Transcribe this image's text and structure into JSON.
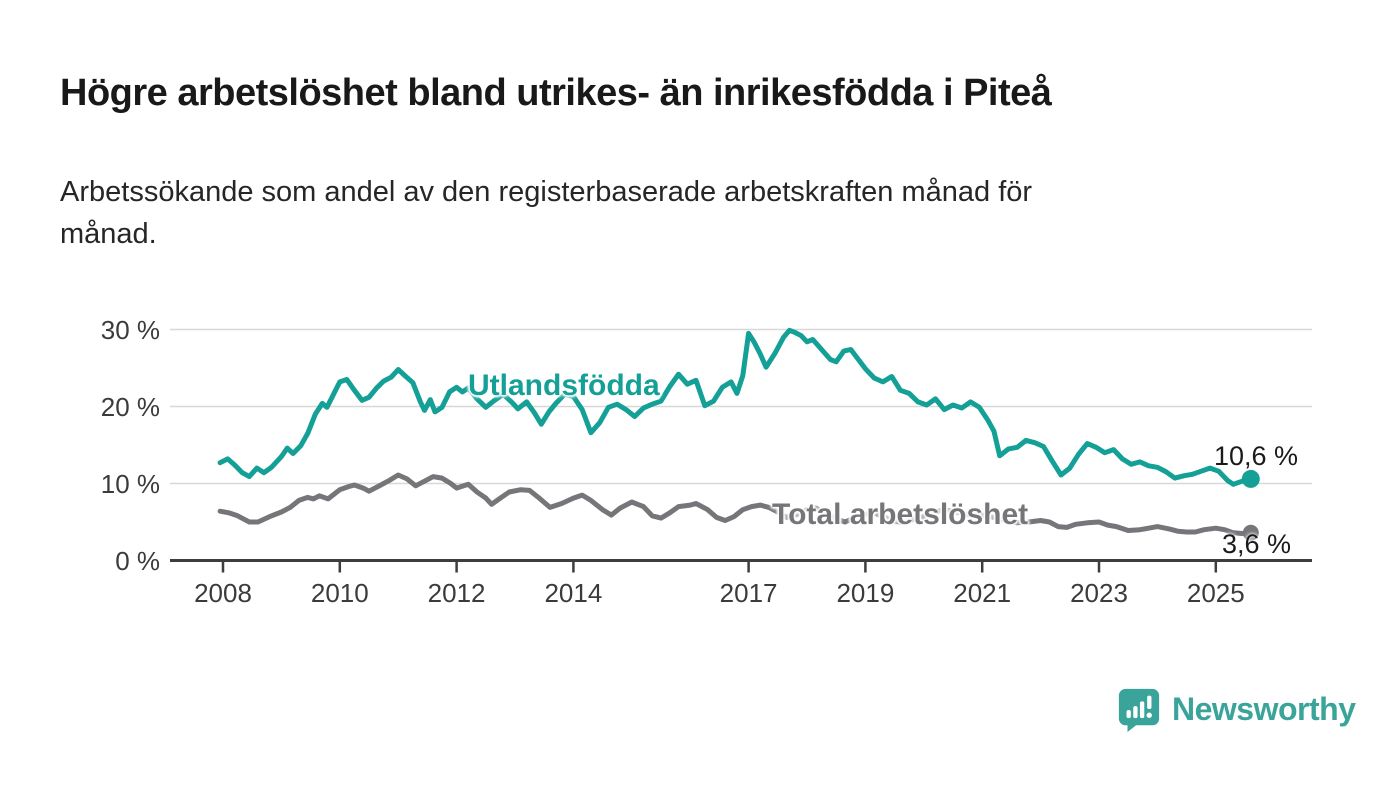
{
  "header": {
    "title": "Högre arbetslöshet bland utrikes- än inrikesfödda i Piteå",
    "subtitle_lines": [
      "Arbetssökande som andel av den registerbaserade arbetskraften månad för",
      "månad."
    ]
  },
  "branding": {
    "name": "Newsworthy",
    "logo_color": "#3aa49b"
  },
  "colors": {
    "accent_teal": "#14a096",
    "neutral_gray": "#76767a",
    "axis": "#3d3d3d",
    "grid": "#d8d8d8",
    "text": "#191919"
  },
  "chart_data": {
    "type": "line",
    "title": "Högre arbetslöshet bland utrikes- än inrikesfödda i Piteå",
    "xlabel": "",
    "ylabel": "",
    "grid": "horizontal",
    "legend_position": "inline-labels",
    "xlim": [
      2007.8,
      2026.2
    ],
    "ylim": [
      0,
      31
    ],
    "y_ticks": [
      {
        "value": 0,
        "label": "0 %"
      },
      {
        "value": 10,
        "label": "10 %"
      },
      {
        "value": 20,
        "label": "20 %"
      },
      {
        "value": 30,
        "label": "30 %"
      }
    ],
    "x_ticks": [
      {
        "year": 2008,
        "label": "2008"
      },
      {
        "year": 2010,
        "label": "2010"
      },
      {
        "year": 2012,
        "label": "2012"
      },
      {
        "year": 2014,
        "label": "2014"
      },
      {
        "year": 2017,
        "label": "2017"
      },
      {
        "year": 2019,
        "label": "2019"
      },
      {
        "year": 2021,
        "label": "2021"
      },
      {
        "year": 2023,
        "label": "2023"
      },
      {
        "year": 2025,
        "label": "2025"
      }
    ],
    "series": [
      {
        "name": "Total arbetslöshet",
        "color": "#76767a",
        "end_label": "3,6 %",
        "end_value": 3.6,
        "points": [
          [
            2007.95,
            6.4
          ],
          [
            2008.1,
            6.2
          ],
          [
            2008.25,
            5.8
          ],
          [
            2008.45,
            5.0
          ],
          [
            2008.6,
            5.0
          ],
          [
            2008.8,
            5.7
          ],
          [
            2009.0,
            6.3
          ],
          [
            2009.15,
            6.9
          ],
          [
            2009.3,
            7.8
          ],
          [
            2009.45,
            8.2
          ],
          [
            2009.55,
            8.0
          ],
          [
            2009.65,
            8.4
          ],
          [
            2009.8,
            8.0
          ],
          [
            2010.0,
            9.2
          ],
          [
            2010.15,
            9.6
          ],
          [
            2010.25,
            9.8
          ],
          [
            2010.4,
            9.4
          ],
          [
            2010.5,
            9.0
          ],
          [
            2010.65,
            9.6
          ],
          [
            2010.85,
            10.4
          ],
          [
            2011.0,
            11.1
          ],
          [
            2011.15,
            10.6
          ],
          [
            2011.3,
            9.7
          ],
          [
            2011.45,
            10.3
          ],
          [
            2011.6,
            10.9
          ],
          [
            2011.75,
            10.7
          ],
          [
            2011.9,
            10.0
          ],
          [
            2012.0,
            9.4
          ],
          [
            2012.2,
            9.9
          ],
          [
            2012.35,
            8.9
          ],
          [
            2012.5,
            8.1
          ],
          [
            2012.6,
            7.3
          ],
          [
            2012.75,
            8.1
          ],
          [
            2012.9,
            8.9
          ],
          [
            2013.1,
            9.2
          ],
          [
            2013.25,
            9.1
          ],
          [
            2013.4,
            8.2
          ],
          [
            2013.6,
            6.9
          ],
          [
            2013.8,
            7.4
          ],
          [
            2014.0,
            8.1
          ],
          [
            2014.15,
            8.5
          ],
          [
            2014.3,
            7.8
          ],
          [
            2014.5,
            6.6
          ],
          [
            2014.65,
            5.9
          ],
          [
            2014.8,
            6.8
          ],
          [
            2015.0,
            7.6
          ],
          [
            2015.2,
            7.0
          ],
          [
            2015.35,
            5.8
          ],
          [
            2015.5,
            5.5
          ],
          [
            2015.65,
            6.2
          ],
          [
            2015.8,
            7.0
          ],
          [
            2016.0,
            7.2
          ],
          [
            2016.1,
            7.4
          ],
          [
            2016.3,
            6.6
          ],
          [
            2016.45,
            5.6
          ],
          [
            2016.6,
            5.2
          ],
          [
            2016.75,
            5.7
          ],
          [
            2016.9,
            6.6
          ],
          [
            2017.05,
            7.0
          ],
          [
            2017.2,
            7.2
          ],
          [
            2017.35,
            6.9
          ],
          [
            2017.5,
            6.3
          ],
          [
            2017.65,
            5.6
          ],
          [
            2017.8,
            5.9
          ],
          [
            2018.0,
            6.6
          ],
          [
            2018.15,
            6.8
          ],
          [
            2018.3,
            6.2
          ],
          [
            2018.5,
            5.4
          ],
          [
            2018.65,
            5.0
          ],
          [
            2018.8,
            5.5
          ],
          [
            2019.0,
            6.0
          ],
          [
            2019.15,
            6.2
          ],
          [
            2019.3,
            5.7
          ],
          [
            2019.5,
            5.1
          ],
          [
            2019.65,
            4.9
          ],
          [
            2019.8,
            5.3
          ],
          [
            2020.0,
            5.7
          ],
          [
            2020.2,
            6.3
          ],
          [
            2020.35,
            6.6
          ],
          [
            2020.5,
            6.4
          ],
          [
            2020.7,
            6.0
          ],
          [
            2020.9,
            5.8
          ],
          [
            2021.05,
            5.9
          ],
          [
            2021.2,
            5.6
          ],
          [
            2021.4,
            5.2
          ],
          [
            2021.6,
            4.9
          ],
          [
            2021.8,
            5.0
          ],
          [
            2022.0,
            5.2
          ],
          [
            2022.15,
            5.0
          ],
          [
            2022.3,
            4.4
          ],
          [
            2022.45,
            4.3
          ],
          [
            2022.6,
            4.7
          ],
          [
            2022.8,
            4.9
          ],
          [
            2023.0,
            5.0
          ],
          [
            2023.15,
            4.6
          ],
          [
            2023.3,
            4.4
          ],
          [
            2023.5,
            3.9
          ],
          [
            2023.7,
            4.0
          ],
          [
            2023.85,
            4.2
          ],
          [
            2024.0,
            4.4
          ],
          [
            2024.2,
            4.1
          ],
          [
            2024.35,
            3.8
          ],
          [
            2024.5,
            3.7
          ],
          [
            2024.65,
            3.7
          ],
          [
            2024.8,
            4.0
          ],
          [
            2025.0,
            4.2
          ],
          [
            2025.15,
            4.0
          ],
          [
            2025.3,
            3.6
          ],
          [
            2025.45,
            3.5
          ],
          [
            2025.6,
            3.6
          ]
        ]
      },
      {
        "name": "Utlandsfödda",
        "color": "#14a096",
        "end_label": "10,6 %",
        "end_value": 10.6,
        "points": [
          [
            2007.95,
            12.7
          ],
          [
            2008.08,
            13.2
          ],
          [
            2008.2,
            12.4
          ],
          [
            2008.33,
            11.4
          ],
          [
            2008.45,
            10.9
          ],
          [
            2008.58,
            12.0
          ],
          [
            2008.7,
            11.4
          ],
          [
            2008.83,
            12.1
          ],
          [
            2009.0,
            13.5
          ],
          [
            2009.1,
            14.6
          ],
          [
            2009.2,
            13.9
          ],
          [
            2009.33,
            14.9
          ],
          [
            2009.45,
            16.5
          ],
          [
            2009.58,
            19.0
          ],
          [
            2009.7,
            20.4
          ],
          [
            2009.78,
            19.9
          ],
          [
            2009.9,
            21.7
          ],
          [
            2010.0,
            23.2
          ],
          [
            2010.12,
            23.5
          ],
          [
            2010.25,
            22.1
          ],
          [
            2010.38,
            20.8
          ],
          [
            2010.5,
            21.2
          ],
          [
            2010.63,
            22.4
          ],
          [
            2010.75,
            23.3
          ],
          [
            2010.88,
            23.8
          ],
          [
            2011.0,
            24.8
          ],
          [
            2011.13,
            23.9
          ],
          [
            2011.25,
            23.1
          ],
          [
            2011.38,
            20.6
          ],
          [
            2011.45,
            19.5
          ],
          [
            2011.55,
            20.9
          ],
          [
            2011.63,
            19.3
          ],
          [
            2011.75,
            19.9
          ],
          [
            2011.88,
            21.9
          ],
          [
            2012.0,
            22.5
          ],
          [
            2012.1,
            21.9
          ],
          [
            2012.2,
            22.4
          ],
          [
            2012.35,
            21.0
          ],
          [
            2012.5,
            19.9
          ],
          [
            2012.65,
            20.8
          ],
          [
            2012.8,
            21.6
          ],
          [
            2012.95,
            20.5
          ],
          [
            2013.05,
            19.7
          ],
          [
            2013.2,
            20.6
          ],
          [
            2013.33,
            19.2
          ],
          [
            2013.45,
            17.7
          ],
          [
            2013.58,
            19.3
          ],
          [
            2013.7,
            20.4
          ],
          [
            2013.85,
            21.6
          ],
          [
            2014.0,
            21.3
          ],
          [
            2014.15,
            19.6
          ],
          [
            2014.3,
            16.6
          ],
          [
            2014.45,
            17.9
          ],
          [
            2014.6,
            19.9
          ],
          [
            2014.75,
            20.3
          ],
          [
            2014.9,
            19.6
          ],
          [
            2015.05,
            18.7
          ],
          [
            2015.2,
            19.8
          ],
          [
            2015.35,
            20.3
          ],
          [
            2015.5,
            20.7
          ],
          [
            2015.65,
            22.6
          ],
          [
            2015.8,
            24.2
          ],
          [
            2015.95,
            22.9
          ],
          [
            2016.1,
            23.4
          ],
          [
            2016.25,
            20.1
          ],
          [
            2016.4,
            20.7
          ],
          [
            2016.55,
            22.5
          ],
          [
            2016.7,
            23.2
          ],
          [
            2016.8,
            21.7
          ],
          [
            2016.9,
            24.0
          ],
          [
            2017.0,
            29.5
          ],
          [
            2017.1,
            28.3
          ],
          [
            2017.2,
            26.8
          ],
          [
            2017.3,
            25.1
          ],
          [
            2017.45,
            26.9
          ],
          [
            2017.6,
            29.0
          ],
          [
            2017.7,
            29.9
          ],
          [
            2017.8,
            29.6
          ],
          [
            2017.9,
            29.2
          ],
          [
            2018.0,
            28.4
          ],
          [
            2018.1,
            28.7
          ],
          [
            2018.25,
            27.4
          ],
          [
            2018.4,
            26.1
          ],
          [
            2018.5,
            25.8
          ],
          [
            2018.63,
            27.2
          ],
          [
            2018.75,
            27.4
          ],
          [
            2018.88,
            26.1
          ],
          [
            2019.0,
            24.9
          ],
          [
            2019.15,
            23.7
          ],
          [
            2019.3,
            23.2
          ],
          [
            2019.45,
            23.9
          ],
          [
            2019.6,
            22.1
          ],
          [
            2019.75,
            21.7
          ],
          [
            2019.9,
            20.6
          ],
          [
            2020.05,
            20.2
          ],
          [
            2020.2,
            21.0
          ],
          [
            2020.35,
            19.6
          ],
          [
            2020.5,
            20.2
          ],
          [
            2020.65,
            19.8
          ],
          [
            2020.8,
            20.6
          ],
          [
            2020.95,
            19.9
          ],
          [
            2021.1,
            18.2
          ],
          [
            2021.2,
            16.8
          ],
          [
            2021.3,
            13.6
          ],
          [
            2021.45,
            14.5
          ],
          [
            2021.6,
            14.7
          ],
          [
            2021.75,
            15.6
          ],
          [
            2021.9,
            15.3
          ],
          [
            2022.05,
            14.8
          ],
          [
            2022.2,
            12.9
          ],
          [
            2022.35,
            11.1
          ],
          [
            2022.5,
            12.0
          ],
          [
            2022.65,
            13.8
          ],
          [
            2022.8,
            15.2
          ],
          [
            2022.95,
            14.7
          ],
          [
            2023.1,
            14.0
          ],
          [
            2023.25,
            14.4
          ],
          [
            2023.4,
            13.2
          ],
          [
            2023.55,
            12.5
          ],
          [
            2023.7,
            12.8
          ],
          [
            2023.85,
            12.3
          ],
          [
            2024.0,
            12.1
          ],
          [
            2024.15,
            11.5
          ],
          [
            2024.3,
            10.7
          ],
          [
            2024.45,
            11.0
          ],
          [
            2024.6,
            11.2
          ],
          [
            2024.75,
            11.6
          ],
          [
            2024.9,
            12.0
          ],
          [
            2025.05,
            11.6
          ],
          [
            2025.2,
            10.4
          ],
          [
            2025.3,
            9.9
          ],
          [
            2025.45,
            10.3
          ],
          [
            2025.6,
            10.6
          ]
        ]
      }
    ]
  }
}
